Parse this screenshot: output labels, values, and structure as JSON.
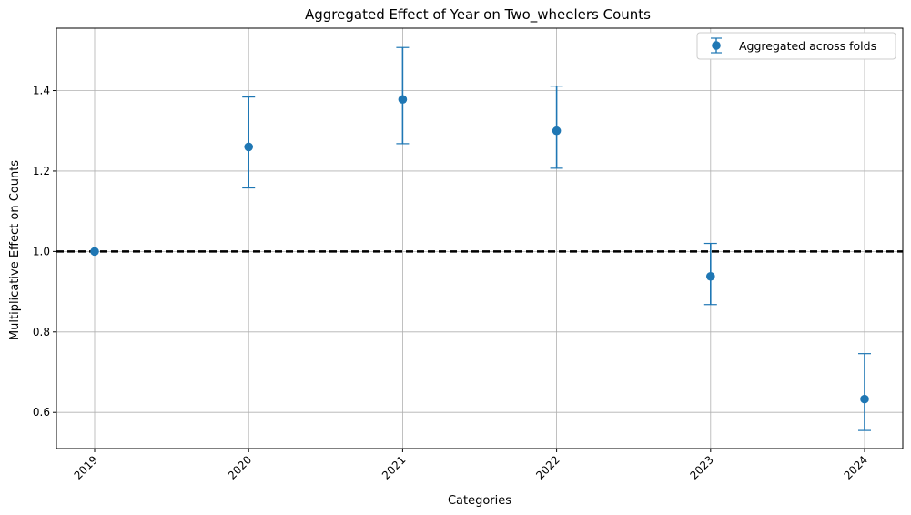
{
  "chart_data": {
    "type": "errorbar",
    "title": "Aggregated Effect of Year on Two_wheelers Counts",
    "xlabel": "Categories",
    "ylabel": "Multiplicative Effect on Counts",
    "categories": [
      "2019",
      "2020",
      "2021",
      "2022",
      "2023",
      "2024"
    ],
    "series": [
      {
        "name": "Aggregated across folds",
        "values": [
          1.0,
          1.26,
          1.378,
          1.3,
          0.938,
          0.633
        ],
        "lower": [
          1.0,
          1.158,
          1.268,
          1.207,
          0.868,
          0.555
        ],
        "upper": [
          1.0,
          1.384,
          1.507,
          1.411,
          1.02,
          0.746
        ]
      }
    ],
    "reference_line": 1.0,
    "ylim": [
      0.51,
      1.555
    ],
    "yticks": [
      "0.6",
      "0.8",
      "1.0",
      "1.2",
      "1.4"
    ],
    "grid": true,
    "legend_position": "top-right",
    "colors": {
      "series": "#1f77b4",
      "reference": "#000000",
      "grid": "#b0b0b0"
    }
  }
}
